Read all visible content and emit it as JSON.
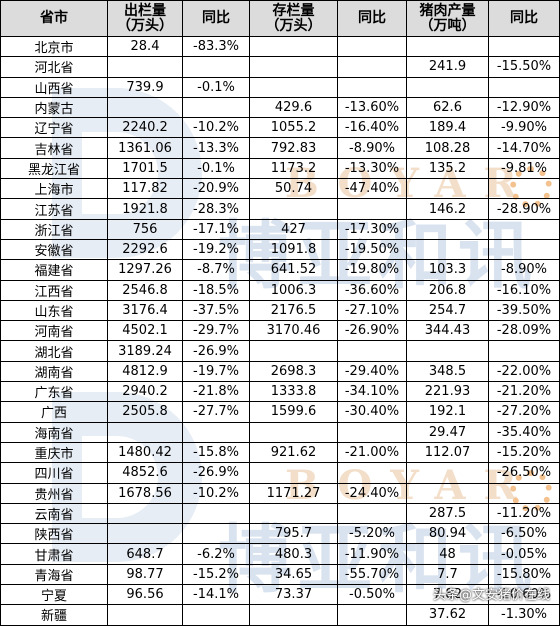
{
  "watermark": {
    "brand_en": "BOYAR",
    "brand_cn": "博亚和讯"
  },
  "footer": "头条@文安猪价在线",
  "table": {
    "headers": [
      "省市",
      "出栏量\n（万头）",
      "同比",
      "存栏量\n（万头）",
      "同比",
      "猪肉产量\n（万吨）",
      "同比"
    ],
    "rows": [
      [
        "北京市",
        "28.4",
        "-83.3%",
        "",
        "",
        "",
        ""
      ],
      [
        "河北省",
        "",
        "",
        "",
        "",
        "241.9",
        "-15.50%"
      ],
      [
        "山西省",
        "739.9",
        "-0.1%",
        "",
        "",
        "",
        ""
      ],
      [
        "内蒙古",
        "",
        "",
        "429.6",
        "-13.60%",
        "62.6",
        "-12.90%"
      ],
      [
        "辽宁省",
        "2240.2",
        "-10.2%",
        "1055.2",
        "-16.40%",
        "189.4",
        "-9.90%"
      ],
      [
        "吉林省",
        "1361.06",
        "-13.3%",
        "792.83",
        "-8.90%",
        "108.28",
        "-14.70%"
      ],
      [
        "黑龙江省",
        "1701.5",
        "-0.1%",
        "1173.2",
        "-13.30%",
        "135.2",
        "-9.81%"
      ],
      [
        "上海市",
        "117.82",
        "-20.9%",
        "50.74",
        "-47.40%",
        "",
        ""
      ],
      [
        "江苏省",
        "1921.8",
        "-28.3%",
        "",
        "",
        "146.2",
        "-28.90%"
      ],
      [
        "浙江省",
        "756",
        "-17.1%",
        "427",
        "-17.30%",
        "",
        ""
      ],
      [
        "安徽省",
        "2292.6",
        "-19.2%",
        "1091.8",
        "-19.50%",
        "",
        ""
      ],
      [
        "福建省",
        "1297.26",
        "-8.7%",
        "641.52",
        "-19.80%",
        "103.3",
        "-8.90%"
      ],
      [
        "江西省",
        "2546.8",
        "-18.5%",
        "1006.3",
        "-36.60%",
        "206.8",
        "-16.10%"
      ],
      [
        "山东省",
        "3176.4",
        "-37.5%",
        "2176.5",
        "-27.10%",
        "254.7",
        "-39.50%"
      ],
      [
        "河南省",
        "4502.1",
        "-29.7%",
        "3170.46",
        "-26.90%",
        "344.43",
        "-28.09%"
      ],
      [
        "湖北省",
        "3189.24",
        "-26.9%",
        "",
        "",
        "",
        ""
      ],
      [
        "湖南省",
        "4812.9",
        "-19.7%",
        "2698.3",
        "-29.40%",
        "348.5",
        "-22.00%"
      ],
      [
        "广东省",
        "2940.2",
        "-21.8%",
        "1333.8",
        "-34.10%",
        "221.93",
        "-21.20%"
      ],
      [
        "广西",
        "2505.8",
        "-27.7%",
        "1599.6",
        "-30.40%",
        "192.1",
        "-27.20%"
      ],
      [
        "海南省",
        "",
        "",
        "",
        "",
        "29.47",
        "-35.40%"
      ],
      [
        "重庆市",
        "1480.42",
        "-15.8%",
        "921.62",
        "-21.00%",
        "112.07",
        "-15.20%"
      ],
      [
        "四川省",
        "4852.6",
        "-26.9%",
        "",
        "",
        "",
        "-26.50%"
      ],
      [
        "贵州省",
        "1678.56",
        "-10.2%",
        "1171.27",
        "-24.40%",
        "",
        ""
      ],
      [
        "云南省",
        "",
        "",
        "",
        "",
        "287.5",
        "-11.20%"
      ],
      [
        "陕西省",
        "",
        "",
        "795.7",
        "-5.20%",
        "80.94",
        "-6.50%"
      ],
      [
        "甘肃省",
        "648.7",
        "-6.2%",
        "480.3",
        "-11.90%",
        "48",
        "-0.05%"
      ],
      [
        "青海省",
        "98.77",
        "-15.2%",
        "34.65",
        "-55.70%",
        "7.7",
        "-15.80%"
      ],
      [
        "宁夏",
        "96.56",
        "-14.1%",
        "73.37",
        "-0.50%",
        "7.82",
        "-10.60%"
      ],
      [
        "新疆",
        "",
        "",
        "",
        "",
        "37.62",
        "-1.30%"
      ]
    ]
  }
}
